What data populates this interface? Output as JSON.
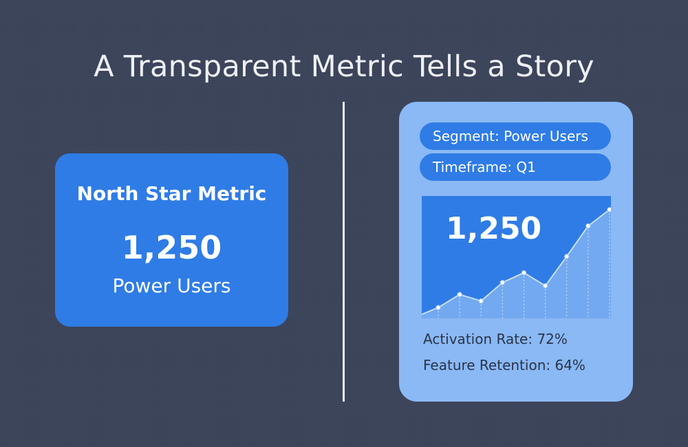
{
  "title": "A Transparent Metric Tells a Story",
  "metric_card": {
    "heading": "North Star Metric",
    "value": "1,250",
    "label": "Power Users"
  },
  "detail_panel": {
    "segment": "Segment: Power Users",
    "timeframe": "Timeframe: Q1",
    "chart_value": "1,250",
    "kpis": [
      "Activation Rate: 72%",
      "Feature Retention: 64%"
    ]
  },
  "colors": {
    "background": "#3a4259",
    "accent_blue": "#2f7ce6",
    "panel_light_blue": "#8ab9f5",
    "title_text": "#eef0f5"
  },
  "chart_data": {
    "type": "area",
    "title": "",
    "xlabel": "",
    "ylabel": "",
    "x": [
      1,
      2,
      3,
      4,
      5,
      6,
      7,
      8,
      9
    ],
    "series": [
      {
        "values": [
          10,
          22,
          16,
          33,
          42,
          30,
          57,
          85,
          100
        ]
      }
    ],
    "ylim": [
      0,
      110
    ],
    "grid": false,
    "legend": "none"
  }
}
